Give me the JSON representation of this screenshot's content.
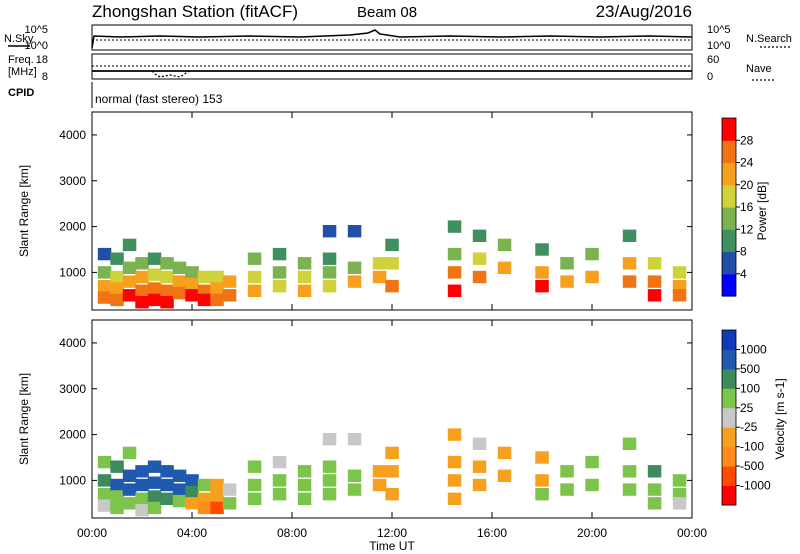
{
  "header": {
    "station": "Zhongshan Station (fitACF)",
    "beam": "Beam 08",
    "date": "23/Aug/2016"
  },
  "noise_panel": {
    "left_label": "N.Sky",
    "right_label": "N.Search",
    "left_ticks": [
      "10^5",
      "10^0"
    ],
    "right_ticks": [
      "10^5",
      "10^0"
    ]
  },
  "freq_panel": {
    "left_label_1": "Freq.",
    "left_label_2": "[MHz]",
    "right_label": "Nave",
    "left_ticks": [
      "18",
      "8"
    ],
    "right_ticks": [
      "60",
      "0"
    ]
  },
  "cpid": {
    "label": "CPID",
    "text": "normal (fast stereo) 153"
  },
  "axes": {
    "ylabel": "Slant Range [km]",
    "xlabel": "Time UT",
    "xtick_labels": [
      "00:00",
      "04:00",
      "08:00",
      "12:00",
      "16:00",
      "20:00",
      "00:00"
    ],
    "ytick_labels": [
      "1000",
      "2000",
      "3000",
      "4000"
    ]
  },
  "colors": {
    "power_scale": [
      "#0000ff",
      "#1f4fa8",
      "#3f8f5f",
      "#7ab34f",
      "#cfd23a",
      "#f6a01e",
      "#f07414",
      "#ff0000"
    ],
    "velocity_scale": [
      "#ff0000",
      "#ff4a00",
      "#ff8c1a",
      "#f6a01e",
      "#c8c8c8",
      "#7cc44a",
      "#3d8a5c",
      "#1f5ab0",
      "#1338b8"
    ]
  },
  "chart_data": [
    {
      "type": "heatmap",
      "name": "Power",
      "ylabel": "Slant Range [km]",
      "xlabel": "Time UT",
      "xlim": [
        0,
        24
      ],
      "ylim": [
        180,
        4500
      ],
      "colorbar": {
        "label": "Power [dB]",
        "tick_labels": [
          "4",
          "8",
          "12",
          "16",
          "20",
          "24",
          "28"
        ],
        "range": [
          0,
          32
        ]
      },
      "cells": [
        [
          0.5,
          1400,
          6
        ],
        [
          0.5,
          1000,
          12
        ],
        [
          0.5,
          700,
          20
        ],
        [
          0.5,
          450,
          24
        ],
        [
          1.0,
          1300,
          10
        ],
        [
          1.0,
          900,
          18
        ],
        [
          1.0,
          650,
          22
        ],
        [
          1.0,
          400,
          26
        ],
        [
          1.5,
          1600,
          8
        ],
        [
          1.5,
          1100,
          14
        ],
        [
          1.5,
          800,
          20
        ],
        [
          1.5,
          500,
          28
        ],
        [
          2.0,
          1200,
          12
        ],
        [
          2.0,
          900,
          20
        ],
        [
          2.0,
          600,
          24
        ],
        [
          2.0,
          350,
          28
        ],
        [
          2.5,
          1300,
          10
        ],
        [
          2.5,
          950,
          16
        ],
        [
          2.5,
          650,
          24
        ],
        [
          2.5,
          400,
          30
        ],
        [
          3.0,
          1200,
          12
        ],
        [
          3.0,
          900,
          18
        ],
        [
          3.0,
          600,
          26
        ],
        [
          3.0,
          350,
          30
        ],
        [
          3.5,
          1100,
          14
        ],
        [
          3.5,
          800,
          20
        ],
        [
          3.5,
          550,
          26
        ],
        [
          4.0,
          1000,
          12
        ],
        [
          4.0,
          750,
          22
        ],
        [
          4.0,
          500,
          28
        ],
        [
          4.5,
          900,
          18
        ],
        [
          4.5,
          600,
          24
        ],
        [
          4.5,
          400,
          30
        ],
        [
          5.0,
          900,
          16
        ],
        [
          5.0,
          650,
          22
        ],
        [
          5.0,
          400,
          26
        ],
        [
          5.5,
          800,
          20
        ],
        [
          5.5,
          500,
          26
        ],
        [
          6.5,
          1300,
          12
        ],
        [
          6.5,
          900,
          16
        ],
        [
          6.5,
          600,
          20
        ],
        [
          7.5,
          1400,
          10
        ],
        [
          7.5,
          1000,
          14
        ],
        [
          7.5,
          700,
          18
        ],
        [
          8.5,
          1200,
          12
        ],
        [
          8.5,
          900,
          16
        ],
        [
          8.5,
          600,
          20
        ],
        [
          9.5,
          1900,
          6
        ],
        [
          9.5,
          1300,
          10
        ],
        [
          9.5,
          1000,
          14
        ],
        [
          9.5,
          700,
          18
        ],
        [
          10.5,
          1900,
          6
        ],
        [
          10.5,
          1100,
          12
        ],
        [
          10.5,
          800,
          20
        ],
        [
          11.5,
          1200,
          16
        ],
        [
          11.5,
          900,
          20
        ],
        [
          12.0,
          1600,
          10
        ],
        [
          12.0,
          1200,
          16
        ],
        [
          12.0,
          700,
          24
        ],
        [
          14.5,
          2000,
          8
        ],
        [
          14.5,
          1400,
          14
        ],
        [
          14.5,
          1000,
          24
        ],
        [
          14.5,
          600,
          28
        ],
        [
          15.5,
          1800,
          10
        ],
        [
          15.5,
          1300,
          18
        ],
        [
          15.5,
          900,
          24
        ],
        [
          16.5,
          1600,
          12
        ],
        [
          16.5,
          1100,
          20
        ],
        [
          18.0,
          1500,
          10
        ],
        [
          18.0,
          1000,
          22
        ],
        [
          18.0,
          700,
          28
        ],
        [
          19.0,
          1200,
          14
        ],
        [
          19.0,
          800,
          22
        ],
        [
          20.0,
          1400,
          12
        ],
        [
          20.0,
          900,
          20
        ],
        [
          21.5,
          1800,
          10
        ],
        [
          21.5,
          1200,
          22
        ],
        [
          21.5,
          800,
          26
        ],
        [
          22.5,
          1200,
          18
        ],
        [
          22.5,
          800,
          24
        ],
        [
          22.5,
          500,
          28
        ],
        [
          23.5,
          1000,
          16
        ],
        [
          23.5,
          700,
          22
        ],
        [
          23.5,
          500,
          26
        ]
      ]
    },
    {
      "type": "heatmap",
      "name": "Velocity",
      "ylabel": "Slant Range [km]",
      "xlabel": "Time UT",
      "xlim": [
        0,
        24
      ],
      "ylim": [
        180,
        4500
      ],
      "colorbar": {
        "label": "Velocity [m s-1]",
        "tick_labels": [
          "-1000",
          "-500",
          "-100",
          "-25",
          "25",
          "100",
          "500",
          "1000"
        ],
        "range": [
          -1250,
          1250
        ]
      },
      "cells": [
        [
          0.5,
          1400,
          300
        ],
        [
          0.5,
          1000,
          600
        ],
        [
          0.5,
          700,
          200
        ],
        [
          0.5,
          450,
          80
        ],
        [
          1.0,
          1300,
          600
        ],
        [
          1.0,
          900,
          800
        ],
        [
          1.0,
          650,
          300
        ],
        [
          1.0,
          400,
          150
        ],
        [
          1.5,
          1600,
          300
        ],
        [
          1.5,
          1100,
          700
        ],
        [
          1.5,
          800,
          800
        ],
        [
          1.5,
          500,
          200
        ],
        [
          2.0,
          1200,
          800
        ],
        [
          2.0,
          900,
          700
        ],
        [
          2.0,
          600,
          300
        ],
        [
          2.0,
          350,
          100
        ],
        [
          2.5,
          1300,
          700
        ],
        [
          2.5,
          950,
          900
        ],
        [
          2.5,
          650,
          500
        ],
        [
          2.5,
          400,
          150
        ],
        [
          3.0,
          1200,
          800
        ],
        [
          3.0,
          900,
          900
        ],
        [
          3.0,
          600,
          600
        ],
        [
          3.5,
          1100,
          900
        ],
        [
          3.5,
          800,
          700
        ],
        [
          3.5,
          550,
          300
        ],
        [
          4.0,
          1000,
          800
        ],
        [
          4.0,
          750,
          600
        ],
        [
          4.0,
          500,
          -200
        ],
        [
          4.5,
          900,
          300
        ],
        [
          4.5,
          600,
          -300
        ],
        [
          4.5,
          400,
          -600
        ],
        [
          5.0,
          900,
          -200
        ],
        [
          5.0,
          650,
          -400
        ],
        [
          5.0,
          400,
          -700
        ],
        [
          5.5,
          800,
          100
        ],
        [
          5.5,
          500,
          200
        ],
        [
          6.5,
          1300,
          150
        ],
        [
          6.5,
          900,
          250
        ],
        [
          6.5,
          600,
          300
        ],
        [
          7.5,
          1400,
          80
        ],
        [
          7.5,
          1000,
          200
        ],
        [
          7.5,
          700,
          250
        ],
        [
          8.5,
          1200,
          150
        ],
        [
          8.5,
          900,
          300
        ],
        [
          8.5,
          600,
          200
        ],
        [
          9.5,
          1900,
          10
        ],
        [
          9.5,
          1300,
          300
        ],
        [
          9.5,
          1000,
          200
        ],
        [
          9.5,
          700,
          150
        ],
        [
          10.5,
          1900,
          10
        ],
        [
          10.5,
          1100,
          150
        ],
        [
          10.5,
          800,
          200
        ],
        [
          11.5,
          1200,
          -300
        ],
        [
          11.5,
          900,
          -400
        ],
        [
          12.0,
          1600,
          -300
        ],
        [
          12.0,
          1200,
          -400
        ],
        [
          12.0,
          700,
          -300
        ],
        [
          14.5,
          2000,
          -200
        ],
        [
          14.5,
          1400,
          -300
        ],
        [
          14.5,
          1000,
          -400
        ],
        [
          14.5,
          600,
          -300
        ],
        [
          15.5,
          1800,
          10
        ],
        [
          15.5,
          1300,
          -300
        ],
        [
          15.5,
          900,
          -400
        ],
        [
          16.5,
          1600,
          -200
        ],
        [
          16.5,
          1100,
          -300
        ],
        [
          18.0,
          1500,
          -300
        ],
        [
          18.0,
          1000,
          -300
        ],
        [
          18.0,
          700,
          200
        ],
        [
          19.0,
          1200,
          150
        ],
        [
          19.0,
          800,
          250
        ],
        [
          20.0,
          1400,
          200
        ],
        [
          20.0,
          900,
          300
        ],
        [
          21.5,
          1800,
          300
        ],
        [
          21.5,
          1200,
          300
        ],
        [
          21.5,
          800,
          200
        ],
        [
          22.5,
          1200,
          600
        ],
        [
          22.5,
          800,
          400
        ],
        [
          22.5,
          500,
          200
        ],
        [
          23.5,
          1000,
          200
        ],
        [
          23.5,
          700,
          150
        ],
        [
          23.5,
          500,
          100
        ]
      ]
    }
  ]
}
